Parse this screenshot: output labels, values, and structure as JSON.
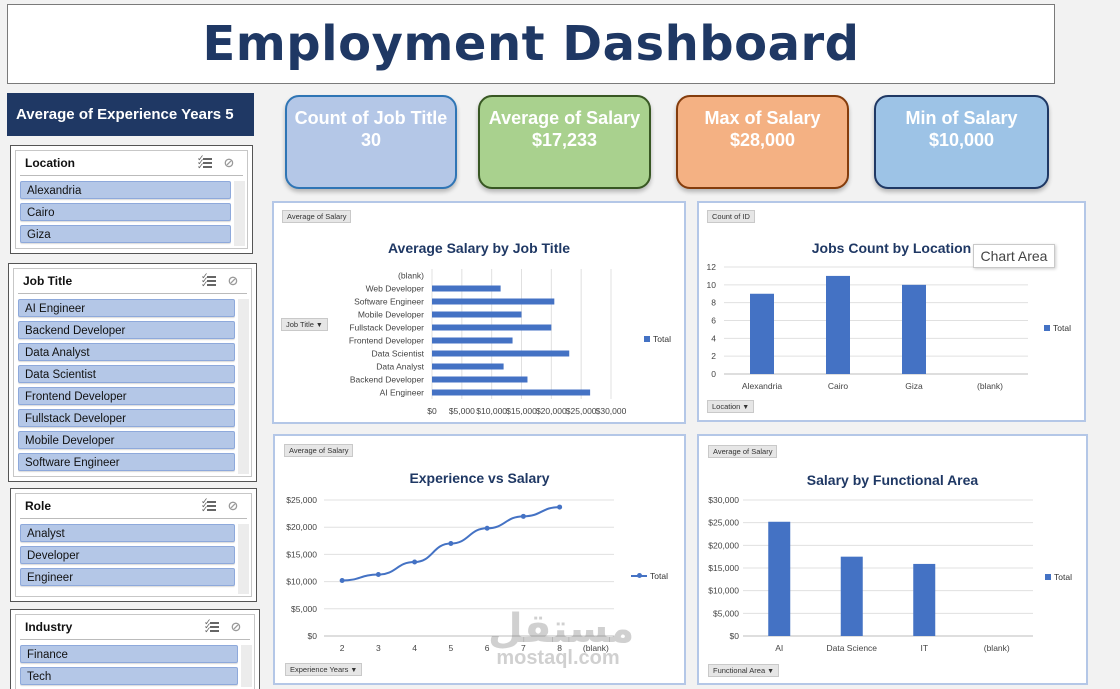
{
  "title": "Employment Dashboard",
  "experience_banner": "Average of Experience Years 5",
  "kpis": [
    {
      "label": "Count of Job Title",
      "value": "30",
      "color": "#b4c7e7",
      "border": "#2f75b5"
    },
    {
      "label": "Average of Salary",
      "value": "$17,233",
      "color": "#a9d18e",
      "border": "#385723"
    },
    {
      "label": "Max of Salary",
      "value": "$28,000",
      "color": "#f4b183",
      "border": "#843c0c"
    },
    {
      "label": "Min of Salary",
      "value": "$10,000",
      "color": "#9dc3e6",
      "border": "#1f3864"
    }
  ],
  "slicers": {
    "location": {
      "title": "Location",
      "items": [
        "Alexandria",
        "Cairo",
        "Giza"
      ]
    },
    "job_title": {
      "title": "Job Title",
      "items": [
        "AI Engineer",
        "Backend Developer",
        "Data Analyst",
        "Data Scientist",
        "Frontend Developer",
        "Fullstack Developer",
        "Mobile Developer",
        "Software Engineer"
      ]
    },
    "role": {
      "title": "Role",
      "items": [
        "Analyst",
        "Developer",
        "Engineer"
      ]
    },
    "industry": {
      "title": "Industry",
      "items": [
        "Finance",
        "Tech"
      ]
    }
  },
  "panels": {
    "salary_by_job": {
      "value_button": "Average of Salary",
      "axis_button": "Job Title",
      "legend": "Total"
    },
    "jobs_by_location": {
      "value_button": "Count of ID",
      "axis_button": "Location",
      "legend": "Total"
    },
    "exp_vs_salary": {
      "value_button": "Average of Salary",
      "axis_button": "Experience Years",
      "legend": "Total"
    },
    "salary_by_area": {
      "value_button": "Average of Salary",
      "axis_button": "Functional Area",
      "legend": "Total"
    }
  },
  "tooltip": "Chart Area",
  "watermark": {
    "arabic": "مستقل",
    "latin": "mostaql.com"
  },
  "chart_data": [
    {
      "type": "bar",
      "orientation": "horizontal",
      "title": "Average Salary by Job Title",
      "categories": [
        "(blank)",
        "Web Developer",
        "Software Engineer",
        "Mobile Developer",
        "Fullstack Developer",
        "Frontend Developer",
        "Data Scientist",
        "Data Analyst",
        "Backend Developer",
        "AI Engineer"
      ],
      "values": [
        null,
        11500,
        20500,
        15000,
        20000,
        13500,
        23000,
        12000,
        16000,
        26500
      ],
      "xticks": [
        "$0",
        "$5,000",
        "$10,000",
        "$15,000",
        "$20,000",
        "$25,000",
        "$30,000"
      ],
      "xlim": [
        0,
        30000
      ],
      "legend": "Total"
    },
    {
      "type": "bar",
      "title": "Jobs Count by Location",
      "categories": [
        "Alexandria",
        "Cairo",
        "Giza",
        "(blank)"
      ],
      "values": [
        9,
        11,
        10,
        null
      ],
      "yticks": [
        "0",
        "2",
        "4",
        "6",
        "8",
        "10",
        "12"
      ],
      "ylim": [
        0,
        12
      ],
      "legend": "Total"
    },
    {
      "type": "line",
      "title": "Experience vs Salary",
      "categories": [
        "2",
        "3",
        "4",
        "5",
        "6",
        "7",
        "8",
        "(blank)"
      ],
      "values": [
        10200,
        11300,
        13600,
        17000,
        19800,
        22000,
        23700,
        null
      ],
      "yticks": [
        "$0",
        "$5,000",
        "$10,000",
        "$15,000",
        "$20,000",
        "$25,000"
      ],
      "ylim": [
        0,
        25000
      ],
      "legend": "Total"
    },
    {
      "type": "bar",
      "title": "Salary by Functional Area",
      "categories": [
        "AI",
        "Data Science",
        "IT",
        "(blank)"
      ],
      "values": [
        25200,
        17500,
        15900,
        null
      ],
      "yticks": [
        "$0",
        "$5,000",
        "$10,000",
        "$15,000",
        "$20,000",
        "$25,000",
        "$30,000"
      ],
      "ylim": [
        0,
        30000
      ],
      "legend": "Total"
    }
  ]
}
